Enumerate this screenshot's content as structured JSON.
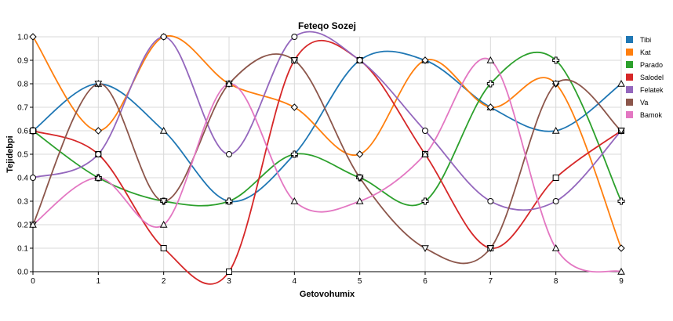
{
  "chart_data": {
    "type": "line",
    "title": "Feteqo Sozej",
    "xlabel": "Getovohumix",
    "ylabel": "Tejidebpi",
    "x": [
      0,
      1,
      2,
      3,
      4,
      5,
      6,
      7,
      8,
      9
    ],
    "xlim": [
      0,
      9
    ],
    "ylim": [
      0,
      1
    ],
    "x_ticks": [
      "0",
      "1",
      "2",
      "3",
      "4",
      "5",
      "6",
      "7",
      "8",
      "9"
    ],
    "y_ticks": [
      "0.0",
      "0.1",
      "0.2",
      "0.3",
      "0.4",
      "0.5",
      "0.6",
      "0.7",
      "0.8",
      "0.9",
      "1.0"
    ],
    "grid": true,
    "legend_position": "right",
    "smooth": true,
    "series": [
      {
        "name": "Tibi",
        "color": "#1f77b4",
        "marker": "triangle-up",
        "values": [
          0.6,
          0.8,
          0.6,
          0.3,
          0.5,
          0.9,
          0.9,
          0.7,
          0.6,
          0.8
        ]
      },
      {
        "name": "Kat",
        "color": "#ff7f0e",
        "marker": "diamond",
        "values": [
          1.0,
          0.6,
          1.0,
          0.8,
          0.7,
          0.5,
          0.9,
          0.7,
          0.8,
          0.1
        ]
      },
      {
        "name": "Parado",
        "color": "#2ca02c",
        "marker": "plus",
        "values": [
          0.6,
          0.4,
          0.3,
          0.3,
          0.5,
          0.4,
          0.3,
          0.8,
          0.9,
          0.3
        ]
      },
      {
        "name": "Salodel",
        "color": "#d62728",
        "marker": "square",
        "values": [
          0.6,
          0.5,
          0.1,
          0.0,
          0.9,
          0.9,
          0.5,
          0.1,
          0.4,
          0.6
        ]
      },
      {
        "name": "Felatek",
        "color": "#9467bd",
        "marker": "circle",
        "values": [
          0.4,
          0.5,
          1.0,
          0.5,
          1.0,
          0.9,
          0.6,
          0.3,
          0.3,
          0.6
        ]
      },
      {
        "name": "Va",
        "color": "#8c564b",
        "marker": "triangle-down",
        "values": [
          0.2,
          0.8,
          0.3,
          0.8,
          0.9,
          0.4,
          0.1,
          0.1,
          0.8,
          0.6
        ]
      },
      {
        "name": "Bamok",
        "color": "#e377c2",
        "marker": "triangle-up",
        "values": [
          0.2,
          0.4,
          0.2,
          0.8,
          0.3,
          0.3,
          0.5,
          0.9,
          0.1,
          0.0
        ]
      }
    ]
  }
}
